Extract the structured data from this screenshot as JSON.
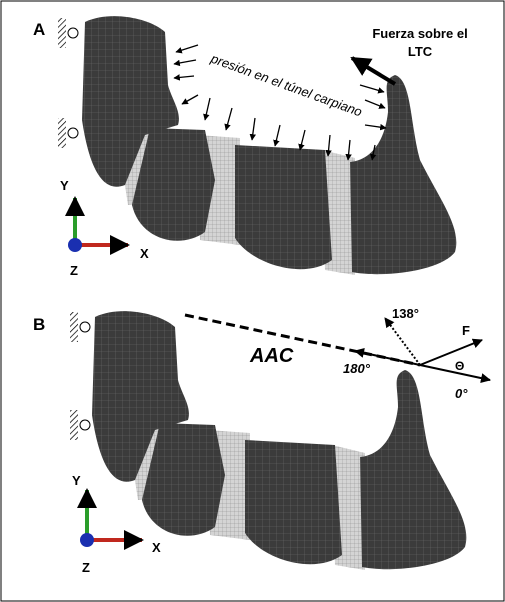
{
  "panels": [
    {
      "label": "A",
      "force_label": [
        "Fuerza sobre el",
        "LTC"
      ],
      "pressure_label": "presión en el túnel carpiano",
      "axes": {
        "y": "Y",
        "x": "X",
        "z": "Z"
      }
    },
    {
      "label": "B",
      "line_label": "AAC",
      "angles": [
        "138°",
        "180°",
        "0°"
      ],
      "force": "F",
      "theta": "Θ",
      "axes": {
        "y": "Y",
        "x": "X",
        "z": "Z"
      }
    }
  ]
}
